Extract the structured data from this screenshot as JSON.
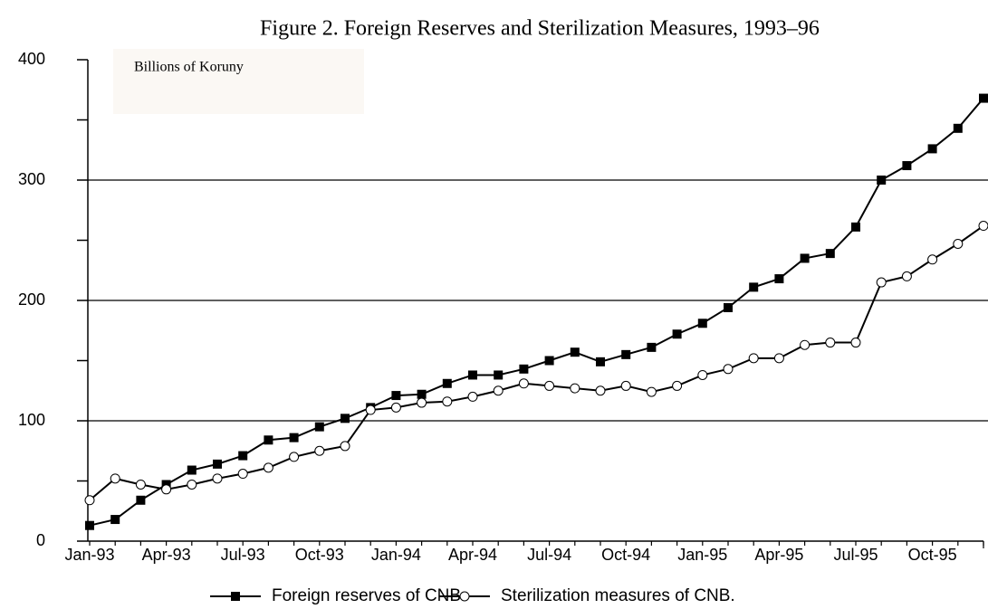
{
  "chart_data": {
    "type": "line",
    "title": "Figure 2. Foreign Reserves and Sterilization Measures, 1993–96",
    "y_label": "Billions of Koruny",
    "categories": [
      "Jan-93",
      null,
      null,
      "Apr-93",
      null,
      null,
      "Jul-93",
      null,
      null,
      "Oct-93",
      null,
      null,
      "Jan-94",
      null,
      null,
      "Apr-94",
      null,
      null,
      "Jul-94",
      null,
      null,
      "Oct-94",
      null,
      null,
      "Jan-95",
      null,
      null,
      "Apr-95",
      null,
      null,
      "Jul-95",
      null,
      null,
      "Oct-95",
      null,
      null
    ],
    "series": [
      {
        "name": "Foreign reserves of CNB",
        "color": "#000000",
        "marker": "square",
        "values": [
          13,
          18,
          34,
          47,
          59,
          64,
          71,
          84,
          86,
          95,
          102,
          111,
          121,
          122,
          131,
          138,
          138,
          143,
          150,
          157,
          149,
          155,
          161,
          172,
          181,
          194,
          211,
          218,
          235,
          239,
          261,
          300,
          312,
          326,
          343,
          368
        ]
      },
      {
        "name": "Sterilization measures of CNB.",
        "color": "#000000",
        "marker": "circle",
        "values": [
          34,
          52,
          47,
          43,
          47,
          52,
          56,
          61,
          70,
          75,
          79,
          109,
          111,
          115,
          116,
          120,
          125,
          131,
          129,
          127,
          125,
          129,
          124,
          129,
          138,
          143,
          152,
          152,
          163,
          165,
          165,
          215,
          220,
          234,
          247,
          262
        ]
      }
    ],
    "ylim": [
      0,
      400
    ],
    "yticks": [
      0,
      100,
      200,
      300,
      400
    ],
    "yminorticks": [
      50,
      150,
      250,
      350
    ],
    "grid": true
  }
}
